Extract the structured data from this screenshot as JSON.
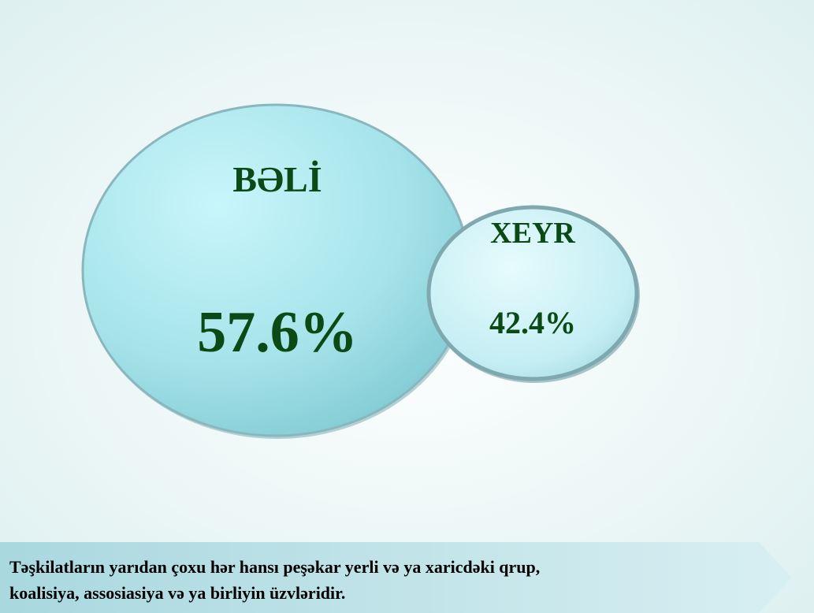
{
  "bubbles": [
    {
      "label": "BƏLİ",
      "value": "57.6%"
    },
    {
      "label": "XEYR",
      "value": "42.4%"
    }
  ],
  "caption": [
    "Təşkilatların yarıdan çoxu hər hansı peşəkar yerli və ya xaricdəki qrup,",
    "koalisiya, assosiasiya və ya birliyin üzvləridir."
  ]
}
